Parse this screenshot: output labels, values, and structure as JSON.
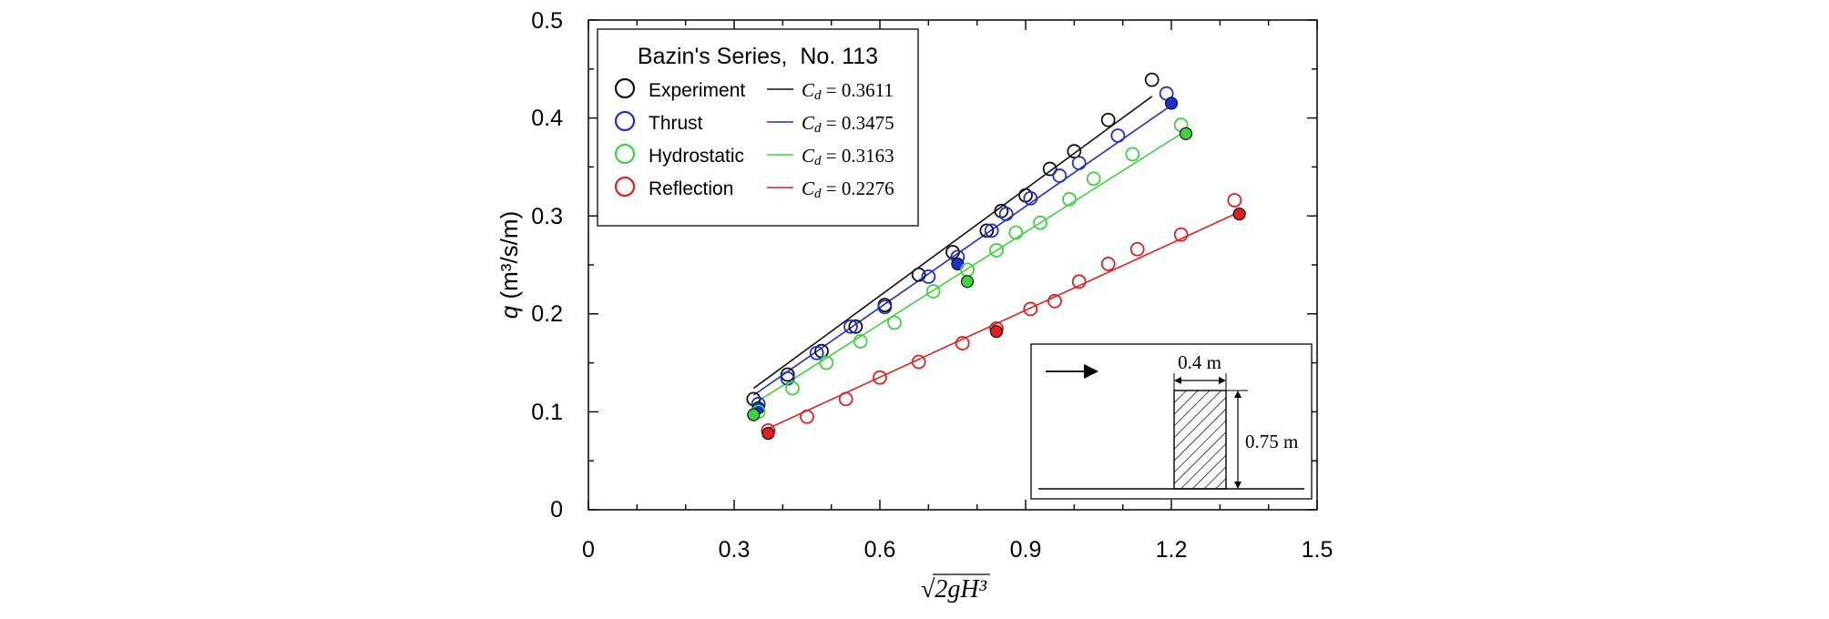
{
  "chart_data": {
    "type": "scatter",
    "title": "",
    "xlabel": "√2gH³",
    "ylabel": {
      "symbol": "q",
      "units": "(m³/s/m)"
    },
    "xlim": [
      0,
      1.5
    ],
    "ylim": [
      0,
      0.5
    ],
    "x_ticks": [
      "0",
      "0.3",
      "0.6",
      "0.9",
      "1.2",
      "1.5"
    ],
    "y_ticks": [
      "0",
      "0.1",
      "0.2",
      "0.3",
      "0.4",
      "0.5"
    ],
    "grid": false,
    "legend": {
      "title": "Bazin's Series,  No. 113",
      "placement": "top-left",
      "fit_symbol": "C",
      "fit_subscript": "d"
    },
    "series": [
      {
        "name": "Experiment",
        "color": "#111111",
        "fit_cd": "0.3611",
        "points": [
          [
            0.34,
            0.113
          ],
          [
            0.41,
            0.138
          ],
          [
            0.48,
            0.162
          ],
          [
            0.55,
            0.187
          ],
          [
            0.61,
            0.209
          ],
          [
            0.68,
            0.24
          ],
          [
            0.75,
            0.263
          ],
          [
            0.82,
            0.285
          ],
          [
            0.85,
            0.305
          ],
          [
            0.9,
            0.321
          ],
          [
            0.95,
            0.348
          ],
          [
            1.0,
            0.366
          ],
          [
            1.07,
            0.398
          ],
          [
            1.16,
            0.439
          ]
        ],
        "filled": [],
        "fit_line": [
          [
            0.34,
            0.124
          ],
          [
            1.16,
            0.422
          ]
        ]
      },
      {
        "name": "Thrust",
        "color": "#1f2fcf",
        "fit_cd": "0.3475",
        "points": [
          [
            0.35,
            0.108
          ],
          [
            0.41,
            0.134
          ],
          [
            0.47,
            0.16
          ],
          [
            0.54,
            0.187
          ],
          [
            0.61,
            0.207
          ],
          [
            0.7,
            0.238
          ],
          [
            0.76,
            0.258
          ],
          [
            0.83,
            0.285
          ],
          [
            0.86,
            0.302
          ],
          [
            0.91,
            0.318
          ],
          [
            0.97,
            0.341
          ],
          [
            1.01,
            0.354
          ],
          [
            1.09,
            0.382
          ],
          [
            1.19,
            0.425
          ]
        ],
        "filled": [
          [
            0.35,
            0.104
          ],
          [
            0.76,
            0.251
          ],
          [
            1.2,
            0.415
          ]
        ],
        "fit_line": [
          [
            0.34,
            0.117
          ],
          [
            1.2,
            0.413
          ]
        ]
      },
      {
        "name": "Hydrostatic",
        "color": "#3fd13f",
        "fit_cd": "0.3163",
        "points": [
          [
            0.35,
            0.1
          ],
          [
            0.42,
            0.124
          ],
          [
            0.49,
            0.15
          ],
          [
            0.56,
            0.172
          ],
          [
            0.63,
            0.191
          ],
          [
            0.71,
            0.223
          ],
          [
            0.78,
            0.245
          ],
          [
            0.84,
            0.265
          ],
          [
            0.88,
            0.283
          ],
          [
            0.93,
            0.293
          ],
          [
            0.99,
            0.317
          ],
          [
            1.04,
            0.338
          ],
          [
            1.12,
            0.363
          ],
          [
            1.22,
            0.393
          ]
        ],
        "filled": [
          [
            0.34,
            0.097
          ],
          [
            0.78,
            0.233
          ],
          [
            1.23,
            0.384
          ]
        ],
        "fit_line": [
          [
            0.34,
            0.108
          ],
          [
            1.23,
            0.387
          ]
        ]
      },
      {
        "name": "Reflection",
        "color": "#e02020",
        "fit_cd": "0.2276",
        "points": [
          [
            0.37,
            0.081
          ],
          [
            0.45,
            0.095
          ],
          [
            0.53,
            0.113
          ],
          [
            0.6,
            0.135
          ],
          [
            0.68,
            0.151
          ],
          [
            0.77,
            0.17
          ],
          [
            0.84,
            0.185
          ],
          [
            0.91,
            0.205
          ],
          [
            0.96,
            0.213
          ],
          [
            1.01,
            0.233
          ],
          [
            1.07,
            0.251
          ],
          [
            1.13,
            0.266
          ],
          [
            1.22,
            0.281
          ],
          [
            1.33,
            0.316
          ]
        ],
        "filled": [
          [
            0.37,
            0.078
          ],
          [
            0.84,
            0.182
          ],
          [
            1.34,
            0.302
          ]
        ],
        "fit_line": [
          [
            0.37,
            0.083
          ],
          [
            1.34,
            0.304
          ]
        ]
      }
    ],
    "inset": {
      "width_label": "0.4 m",
      "height_label": "0.75 m"
    }
  }
}
